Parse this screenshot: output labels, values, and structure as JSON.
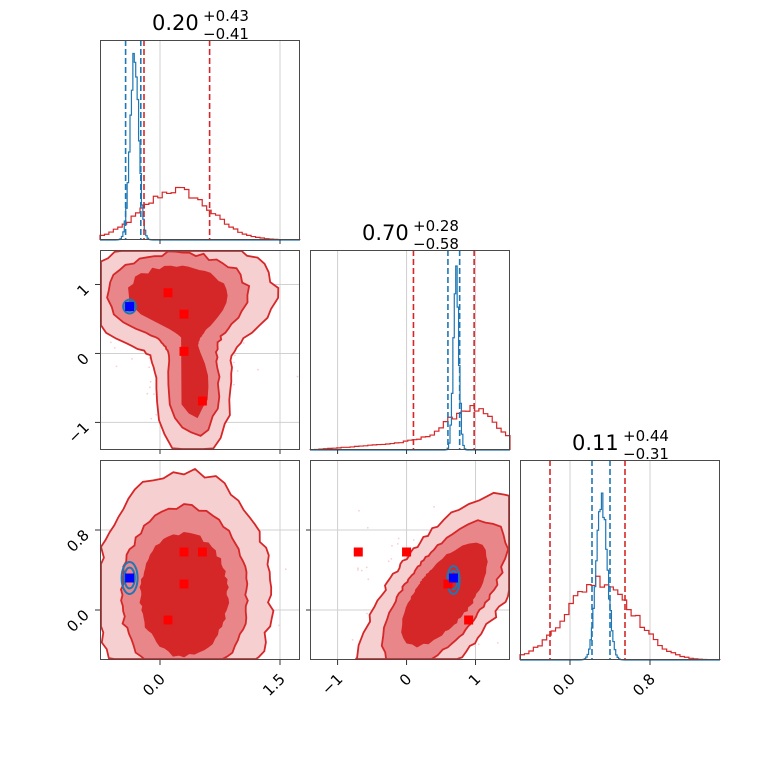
{
  "colors": {
    "red": "#d62728",
    "red_mid": "#e8868a",
    "red_light": "#f6cfd1",
    "blue": "#1f77b4",
    "marker_red": "#ff0000",
    "marker_blue": "#0000ff",
    "grid": "#d0d0d0"
  },
  "chart_data": {
    "type": "corner",
    "parameters": [
      {
        "range": [
          -0.75,
          1.75
        ],
        "ticks": [
          0.0,
          1.5
        ],
        "tick_labels": [
          "0.0",
          "1.5"
        ],
        "title": {
          "median": "0.20",
          "plus": "+0.43",
          "minus": "−0.41"
        },
        "quantile_lines": {
          "red": [
            -0.2,
            0.62
          ],
          "blue": [
            -0.43,
            -0.24
          ]
        }
      },
      {
        "range": [
          -1.4,
          1.5
        ],
        "ticks": [
          -1,
          0,
          1
        ],
        "tick_labels": [
          "−1",
          "0",
          "1"
        ],
        "title": {
          "median": "0.70",
          "plus": "+0.28",
          "minus": "−0.58"
        },
        "quantile_lines": {
          "red": [
            0.1,
            0.98
          ],
          "blue": [
            0.6,
            0.77
          ]
        }
      },
      {
        "range": [
          -0.5,
          1.5
        ],
        "ticks": [
          0.0,
          0.8
        ],
        "tick_labels": [
          "0.0",
          "0.8"
        ],
        "title": {
          "median": "0.11",
          "plus": "+0.44",
          "minus": "−0.31"
        },
        "quantile_lines": {
          "red": [
            -0.2,
            0.55
          ],
          "blue": [
            0.22,
            0.4
          ]
        }
      }
    ],
    "diagonal_histograms": [
      {
        "param": 0,
        "red": {
          "center": 0.2,
          "width": 0.42,
          "scale": 0.25
        },
        "blue": {
          "center": -0.32,
          "width": 0.055,
          "scale": 0.9
        }
      },
      {
        "param": 1,
        "red": {
          "center": 0.95,
          "width": 0.35,
          "scale": 0.19,
          "left_tail": 0.04
        },
        "blue": {
          "center": 0.72,
          "width": 0.04,
          "scale": 0.86
        }
      },
      {
        "param": 2,
        "red": {
          "center": 0.3,
          "width": 0.33,
          "scale": 0.4
        },
        "blue": {
          "center": 0.32,
          "width": 0.055,
          "scale": 0.8
        }
      }
    ],
    "pair_panels": [
      {
        "row": 1,
        "col": 0,
        "red_markers": [
          [
            0.1,
            0.88
          ],
          [
            0.3,
            0.57
          ],
          [
            0.3,
            0.03
          ],
          [
            0.53,
            -0.69
          ]
        ],
        "blue_marker": [
          -0.38,
          0.68
        ],
        "blue_contour": {
          "cx": -0.38,
          "cy": 0.68,
          "rx": 0.08,
          "ry": 0.1
        }
      },
      {
        "row": 2,
        "col": 0,
        "red_markers": [
          [
            0.3,
            0.58
          ],
          [
            0.53,
            0.58
          ],
          [
            0.3,
            0.26
          ],
          [
            0.1,
            -0.1
          ]
        ],
        "blue_marker": [
          -0.38,
          0.32
        ],
        "blue_contour": {
          "cx": -0.38,
          "cy": 0.32,
          "rx": 0.1,
          "ry": 0.16
        }
      },
      {
        "row": 2,
        "col": 1,
        "red_markers": [
          [
            -0.7,
            0.58
          ],
          [
            0.0,
            0.58
          ],
          [
            0.6,
            0.26
          ],
          [
            0.9,
            -0.1
          ]
        ],
        "blue_marker": [
          0.68,
          0.32
        ],
        "blue_contour": {
          "cx": 0.68,
          "cy": 0.3,
          "rx": 0.09,
          "ry": 0.14
        }
      }
    ]
  }
}
